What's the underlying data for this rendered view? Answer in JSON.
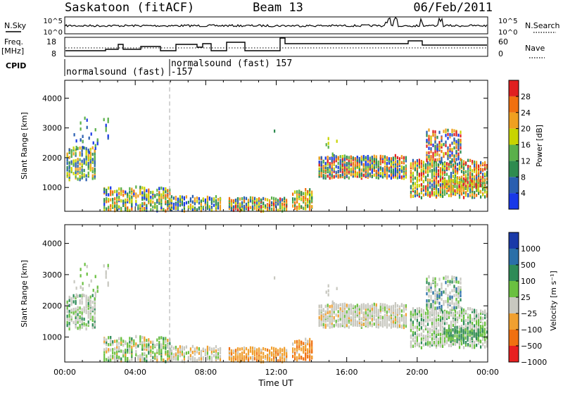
{
  "header": {
    "station": "Saskatoon (fitACF)",
    "beam": "Beam 13",
    "date": "06/Feb/2011"
  },
  "strips": {
    "nsky_label": "N.Sky",
    "nsky_ticks": [
      "10^5",
      "10^0"
    ],
    "nsearch_label": "N.Search",
    "nsearch_ticks": [
      "10^5",
      "10^0"
    ],
    "freq_label_top": "Freq.",
    "freq_label_unit": "[MHz]",
    "freq_ticks": [
      "18",
      "8"
    ],
    "nave_label": "Nave",
    "nave_ticks": [
      "60",
      "0"
    ],
    "cpid_label": "CPID",
    "cpid_events": [
      "normalsound (fast) -157",
      "normalsound (fast) 157"
    ]
  },
  "chart_data": [
    {
      "type": "heatmap",
      "name": "power",
      "ylabel": "Slant Range [km]",
      "y_ticks": [
        "1000",
        "2000",
        "3000",
        "4000"
      ],
      "ylim": [
        200,
        4600
      ],
      "xlim": [
        0,
        24
      ],
      "colorbar_label": "Power [dB]",
      "colorbar_ticks": [
        "4",
        "8",
        "12",
        "16",
        "20",
        "24",
        "28"
      ],
      "colors": [
        "#1838e8",
        "#2a5fb0",
        "#2e8b4f",
        "#5ab04a",
        "#c8d400",
        "#f0a020",
        "#f07010",
        "#e02020"
      ]
    },
    {
      "type": "heatmap",
      "name": "velocity",
      "ylabel": "Slant Range [km]",
      "y_ticks": [
        "1000",
        "2000",
        "3000",
        "4000"
      ],
      "ylim": [
        200,
        4600
      ],
      "xlim": [
        0,
        24
      ],
      "xlabel": "Time UT",
      "x_ticks": [
        "00:00",
        "04:00",
        "08:00",
        "12:00",
        "16:00",
        "20:00",
        "00:00"
      ],
      "colorbar_label": "Velocity [m s⁻¹]",
      "colorbar_ticks": [
        "1000",
        "500",
        "100",
        "25",
        "−25",
        "−100",
        "−500",
        "−1000"
      ],
      "colors": [
        "#1a3aa8",
        "#2a6fa8",
        "#2e8b57",
        "#6ac040",
        "#c8c8c0",
        "#f0a030",
        "#f07010",
        "#e82020"
      ]
    }
  ]
}
